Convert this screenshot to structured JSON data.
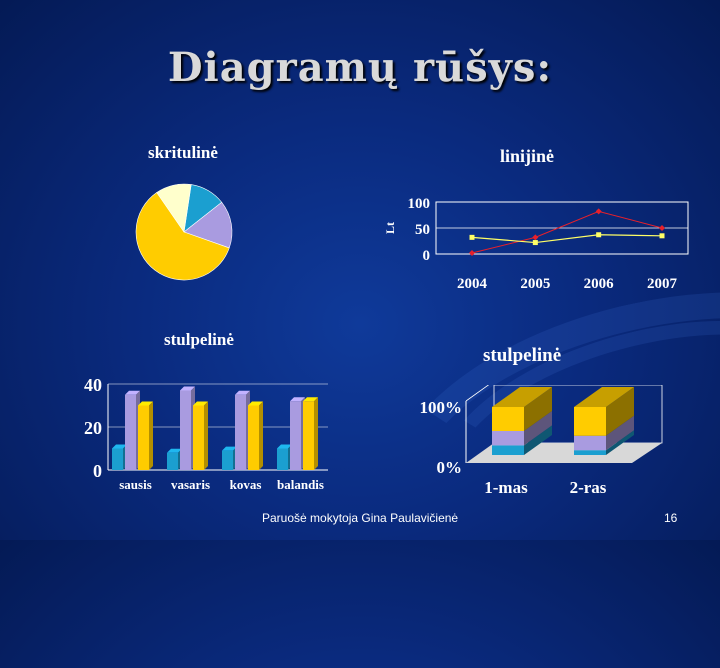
{
  "slide": {
    "title": "Diagramų rūšys:",
    "footer_author": "Paruošė mokytoja Gina Paulavičienė",
    "page_number": "16"
  },
  "labels": {
    "pie": "skritulinė",
    "line": "linijinė",
    "bar_left": "stulpelinė",
    "bar_right": "stulpelinė"
  },
  "chart_data": [
    {
      "type": "pie",
      "title": "skritulinė",
      "slices": [
        {
          "value": 12,
          "color": "#1b9fd0"
        },
        {
          "value": 16,
          "color": "#a99be0"
        },
        {
          "value": 60,
          "color": "#ffcc00"
        },
        {
          "value": 12,
          "color": "#ffffcc"
        }
      ]
    },
    {
      "type": "line",
      "title": "linijinė",
      "categories": [
        "2004",
        "2005",
        "2006",
        "2007"
      ],
      "ylabel": "Lt",
      "ylim": [
        0,
        100
      ],
      "yticks": [
        "0",
        "50",
        "100"
      ],
      "grid": true,
      "series": [
        {
          "values": [
            2,
            32,
            82,
            50
          ],
          "color": "#e8202a",
          "marker": "diamond"
        },
        {
          "values": [
            32,
            22,
            37,
            35
          ],
          "color": "#ffff66",
          "marker": "square"
        }
      ]
    },
    {
      "type": "bar",
      "title": "stulpelinė",
      "categories": [
        "sausis",
        "vasaris",
        "kovas",
        "balandis"
      ],
      "ylim": [
        0,
        40
      ],
      "yticks": [
        "0",
        "20",
        "40"
      ],
      "series": [
        {
          "values": [
            10,
            8,
            9,
            10
          ],
          "color": "#1b9fd0"
        },
        {
          "values": [
            35,
            37,
            35,
            32
          ],
          "color": "#a99be0"
        },
        {
          "values": [
            30,
            30,
            30,
            32
          ],
          "color": "#ffcc00"
        }
      ]
    },
    {
      "type": "bar",
      "title": "stulpelinė",
      "stacked": "percent",
      "categories": [
        "1-mas",
        "2-ras"
      ],
      "yticks": [
        "0%",
        "100%"
      ],
      "series": [
        {
          "values": [
            20,
            10
          ],
          "color": "#1b9fd0"
        },
        {
          "values": [
            30,
            30
          ],
          "color": "#a99be0"
        },
        {
          "values": [
            50,
            60
          ],
          "color": "#ffcc00"
        }
      ]
    }
  ]
}
